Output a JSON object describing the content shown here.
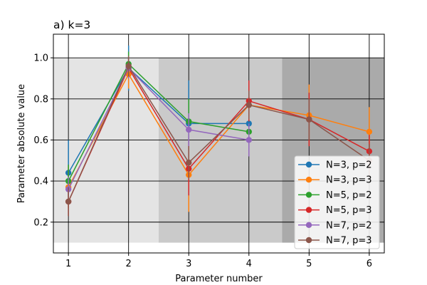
{
  "chart_data": {
    "type": "line",
    "title": "a) k=3",
    "xlabel": "Parameter number",
    "ylabel": "Parameter absolute value",
    "xlim": [
      0.75,
      6.25
    ],
    "ylim": [
      0.05,
      1.115
    ],
    "x_ticks": [
      "1",
      "2",
      "3",
      "4",
      "5",
      "6"
    ],
    "y_ticks": [
      "0.2",
      "0.4",
      "0.6",
      "0.8",
      "1.0"
    ],
    "grid": "horizontal",
    "legend_position": "lower-right",
    "shaded_regions": [
      {
        "x_from": 0.75,
        "x_to": 2.5,
        "y_from": 0.1,
        "y_to": 1.0,
        "color": "#e4e4e4"
      },
      {
        "x_from": 2.5,
        "x_to": 4.55,
        "y_from": 0.1,
        "y_to": 1.0,
        "color": "#cacaca"
      },
      {
        "x_from": 4.55,
        "x_to": 6.25,
        "y_from": 0.1,
        "y_to": 1.0,
        "color": "#aaaaaa"
      }
    ],
    "series": [
      {
        "name": "N=3, p=2",
        "color": "#1f77b4",
        "x": [
          1,
          2,
          3,
          4
        ],
        "y": [
          0.44,
          0.95,
          0.68,
          0.68
        ],
        "err": [
          0.16,
          0.11,
          0.21,
          0.0
        ]
      },
      {
        "name": "N=3, p=3",
        "color": "#ff7f0e",
        "x": [
          1,
          2,
          3,
          4,
          5,
          6
        ],
        "y": [
          0.37,
          0.92,
          0.43,
          0.77,
          0.72,
          0.64
        ],
        "err": [
          0.1,
          0.07,
          0.18,
          0.03,
          0.15,
          0.12
        ]
      },
      {
        "name": "N=5, p=2",
        "color": "#2ca02c",
        "x": [
          1,
          2,
          3,
          4
        ],
        "y": [
          0.4,
          0.97,
          0.69,
          0.64
        ],
        "err": [
          0.08,
          0.06,
          0.11,
          0.03
        ]
      },
      {
        "name": "N=5, p=3",
        "color": "#d62728",
        "x": [
          1,
          2,
          3,
          4,
          5,
          6
        ],
        "y": [
          0.3,
          0.95,
          0.46,
          0.79,
          0.7,
          0.545
        ],
        "err": [
          0.07,
          0.05,
          0.13,
          0.1,
          0.13,
          0.08
        ]
      },
      {
        "name": "N=7, p=2",
        "color": "#9467bd",
        "x": [
          1,
          2,
          3,
          4
        ],
        "y": [
          0.36,
          0.95,
          0.65,
          0.6
        ],
        "err": [
          0.06,
          0.05,
          0.08,
          0.08
        ]
      },
      {
        "name": "N=7, p=3",
        "color": "#8c564b",
        "x": [
          1,
          2,
          3,
          4,
          5,
          6
        ],
        "y": [
          0.3,
          0.96,
          0.49,
          0.77,
          0.7,
          0.5
        ],
        "err": [
          0.07,
          0.05,
          0.08,
          0.07,
          0.1,
          0.08
        ]
      }
    ]
  }
}
